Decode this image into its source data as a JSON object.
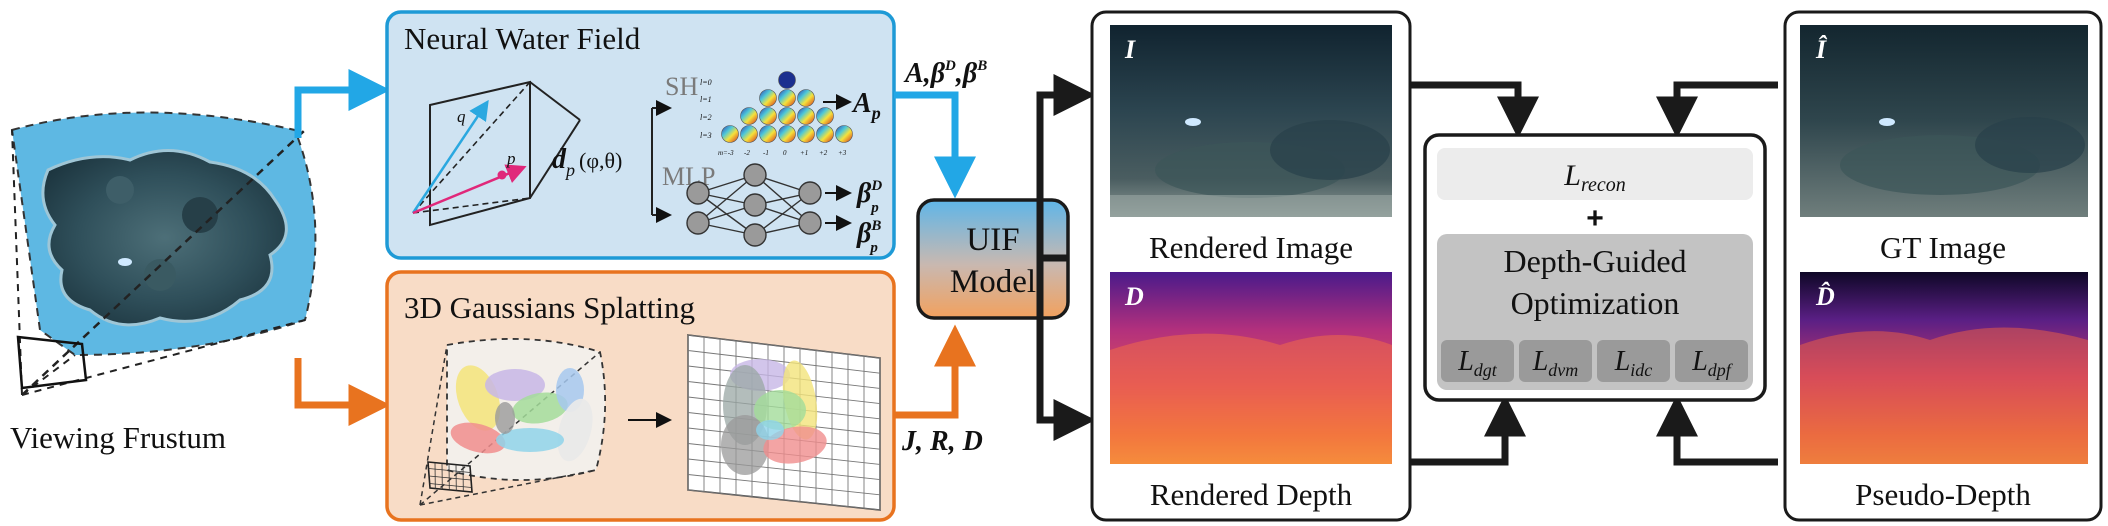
{
  "frustum": {
    "label": "Viewing Frustum"
  },
  "water_field": {
    "title": "Neural Water Field",
    "direction_symbol": "d",
    "direction_subscript": "p",
    "direction_args": "(φ,θ)",
    "point_q": "q",
    "point_p": "p",
    "sh_label": "SH",
    "mlp_label": "MLP",
    "out_a": "A",
    "out_a_sub": "p",
    "out_beta": "β",
    "out_sub_p": "p",
    "out_sup_d": "D",
    "out_sup_b": "B",
    "sh_row_labels": [
      "l=0",
      "l=1",
      "l=2",
      "l=3"
    ],
    "sh_m_labels": [
      "m=-3",
      "-2",
      "-1",
      "0",
      "+1",
      "+2",
      "+3"
    ],
    "colors": {
      "border": "#1e9ad6",
      "fill": "#cfe3f2",
      "arrow": "#22a7e6"
    }
  },
  "gaussians": {
    "title": "3D Gaussians Splatting",
    "colors": {
      "border": "#e8731f",
      "fill": "#f8dcc6",
      "arrow": "#e8731f"
    }
  },
  "water_params": {
    "a": "A",
    "sep": ",",
    "beta": "β",
    "sup_d": "D",
    "sup_b": "B"
  },
  "gauss_params": {
    "text": "J, R, D"
  },
  "uif_model": {
    "line1": "UIF",
    "line2": "Model"
  },
  "rendered": {
    "image_caption": "Rendered Image",
    "image_tag": "I",
    "depth_caption": "Rendered Depth",
    "depth_tag": "D"
  },
  "optimization": {
    "recon_main": "L",
    "recon_sub": "recon",
    "plus": "+",
    "line1": "Depth-Guided",
    "line2": "Optimization",
    "losses": [
      {
        "main": "L",
        "sub": "dgt"
      },
      {
        "main": "L",
        "sub": "dvm"
      },
      {
        "main": "L",
        "sub": "idc"
      },
      {
        "main": "L",
        "sub": "dpf"
      }
    ]
  },
  "ground_truth": {
    "image_caption": "GT Image",
    "image_tag": "Î",
    "depth_caption": "Pseudo-Depth",
    "depth_tag": "D̂"
  }
}
